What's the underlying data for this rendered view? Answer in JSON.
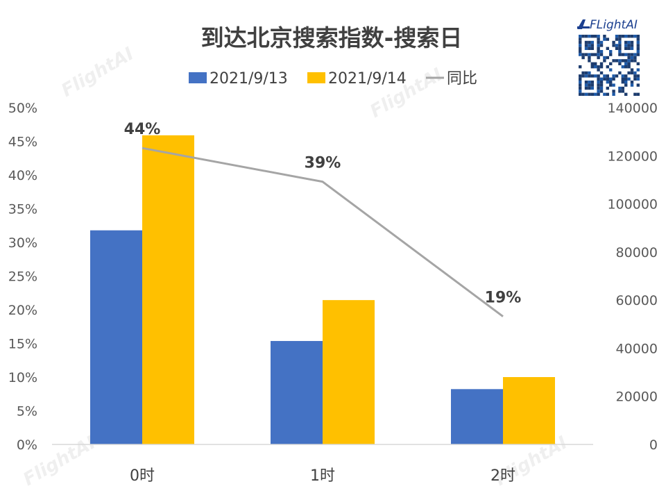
{
  "brand": {
    "name": "FLightAI"
  },
  "watermark": {
    "text": "FlightAI"
  },
  "colors": {
    "series_a": "#4472C4",
    "series_b": "#FFC000",
    "line": "#A5A5A5",
    "text": "#404040"
  },
  "chart_data": {
    "type": "bar",
    "title": "到达北京搜索指数-搜索日",
    "categories": [
      "0时",
      "1时",
      "2时"
    ],
    "series": [
      {
        "name": "2021/9/13",
        "values": [
          89000,
          43000,
          23000
        ],
        "axis": "right",
        "kind": "bar"
      },
      {
        "name": "2021/9/14",
        "values": [
          128500,
          60000,
          28000
        ],
        "axis": "right",
        "kind": "bar"
      },
      {
        "name": "同比",
        "values": [
          0.44,
          0.39,
          0.19
        ],
        "axis": "left",
        "kind": "line",
        "labels": [
          "44%",
          "39%",
          "19%"
        ]
      }
    ],
    "y_left": {
      "ylim": [
        0,
        0.5
      ],
      "ticks": [
        "0%",
        "5%",
        "10%",
        "15%",
        "20%",
        "25%",
        "30%",
        "35%",
        "40%",
        "45%",
        "50%"
      ]
    },
    "y_right": {
      "ylim": [
        0,
        140000
      ],
      "ticks": [
        "0",
        "20000",
        "40000",
        "60000",
        "80000",
        "100000",
        "120000",
        "140000"
      ]
    },
    "legend_position": "top",
    "grid": false
  }
}
